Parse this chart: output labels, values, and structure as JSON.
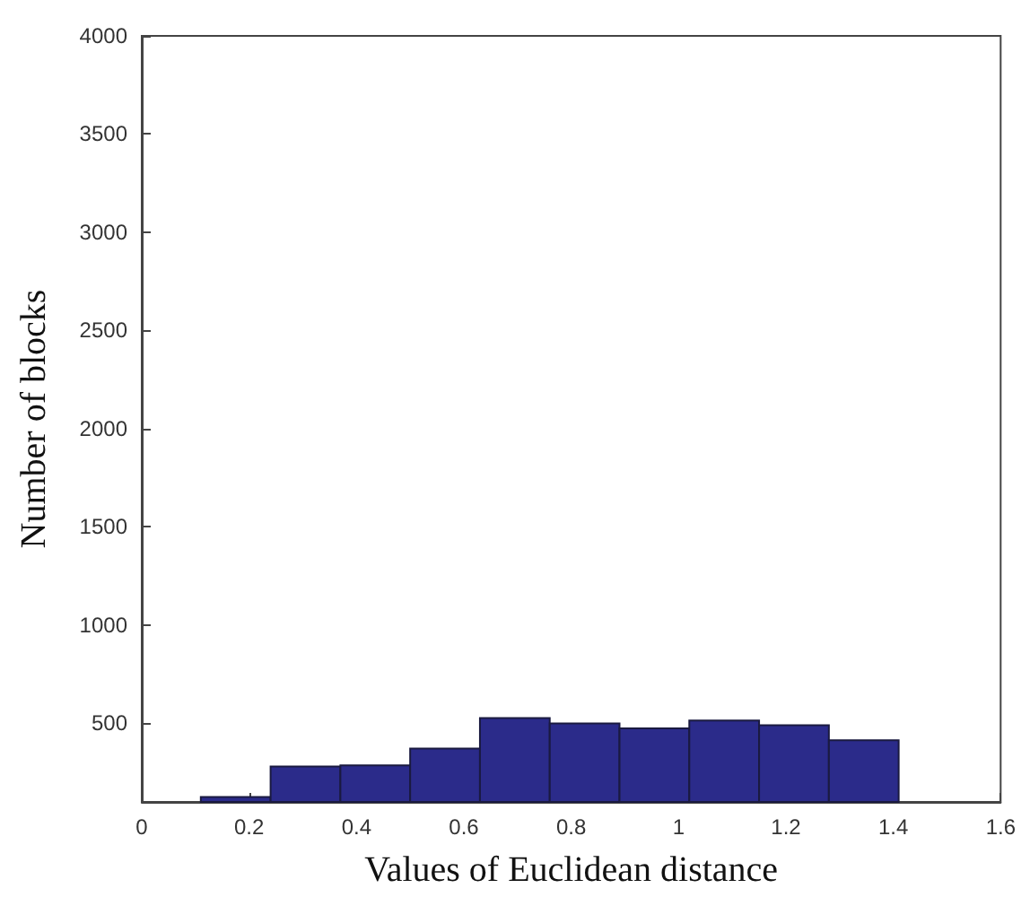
{
  "chart_data": {
    "type": "histogram",
    "xlabel": "Values of Euclidean distance",
    "ylabel": "Number of blocks",
    "bins": [
      0.11,
      0.24,
      0.37,
      0.5,
      0.63,
      0.76,
      0.89,
      1.02,
      1.15,
      1.28,
      1.41
    ],
    "values": [
      125,
      280,
      286,
      372,
      527,
      500,
      475,
      515,
      491,
      414
    ],
    "color": "#2b2b8a",
    "xlim": [
      0,
      1.6
    ],
    "xticks": [
      0,
      0.2,
      0.4,
      0.6,
      0.8,
      1,
      1.2,
      1.4,
      1.6
    ],
    "ylim": [
      100,
      4000
    ],
    "yticks": [
      500,
      1000,
      1500,
      2000,
      2500,
      3000,
      3500,
      4000
    ],
    "grid": false
  }
}
